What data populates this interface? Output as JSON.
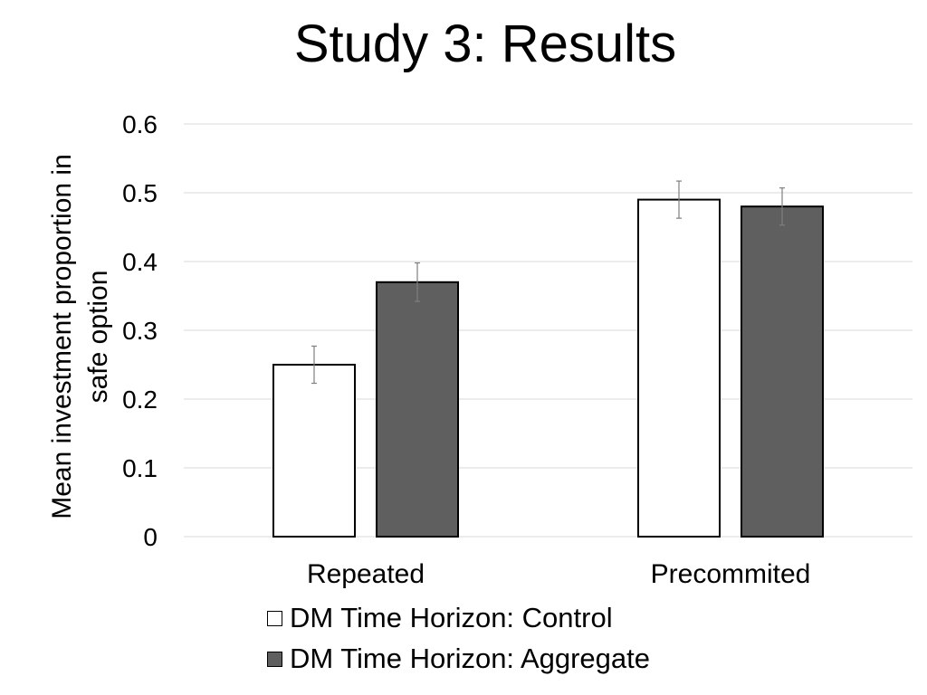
{
  "chart_data": {
    "type": "bar",
    "title": "Study 3: Results",
    "xlabel": "",
    "ylabel": "Mean investment proportion in safe option",
    "ylabel_lines": [
      "Mean investment proportion in",
      "safe option"
    ],
    "categories": [
      "Repeated",
      "Precommited"
    ],
    "series": [
      {
        "name": "DM Time Horizon: Control",
        "values": [
          0.25,
          0.49
        ],
        "errors": [
          0.027,
          0.027
        ],
        "color": "#ffffff"
      },
      {
        "name": "DM Time Horizon: Aggregate",
        "values": [
          0.37,
          0.48
        ],
        "errors": [
          0.028,
          0.027
        ],
        "color": "#5f5f5f"
      }
    ],
    "ylim": [
      0,
      0.6
    ],
    "yticks": [
      "0",
      "0.1",
      "0.2",
      "0.3",
      "0.4",
      "0.5",
      "0.6"
    ],
    "grid": true,
    "legend_position": "bottom"
  }
}
